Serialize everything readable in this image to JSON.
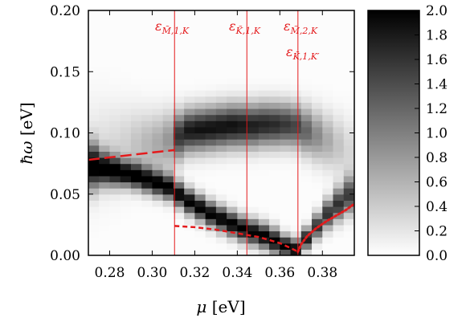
{
  "chart_data": [
    {
      "type": "heatmap",
      "xlabel_symbol": "μ",
      "xlabel_unit": "[eV]",
      "ylabel_symbol": "ħω",
      "ylabel_unit": "[eV]",
      "xlim": [
        0.27,
        0.395
      ],
      "ylim": [
        0.0,
        0.2
      ],
      "x_ticks": [
        0.28,
        0.3,
        0.32,
        0.34,
        0.36,
        0.38
      ],
      "x_tick_labels": [
        "0.28",
        "0.30",
        "0.32",
        "0.34",
        "0.36",
        "0.38"
      ],
      "y_ticks": [
        0.0,
        0.05,
        0.1,
        0.15,
        0.2
      ],
      "y_tick_labels": [
        "0.00",
        "0.05",
        "0.10",
        "0.15",
        "0.20"
      ],
      "grid": false,
      "colormap": "gray_r",
      "colorbar": {
        "range": [
          0.0,
          2.0
        ],
        "ticks": [
          0.0,
          0.2,
          0.4,
          0.6,
          0.8,
          1.0,
          1.2,
          1.4,
          1.6,
          1.8,
          2.0
        ],
        "tick_labels": [
          "0.0",
          "0.2",
          "0.4",
          "0.6",
          "0.8",
          "1.0",
          "1.2",
          "1.4",
          "1.6",
          "1.8",
          "2.0"
        ],
        "placement": "right"
      },
      "columns_mu": [
        0.2725,
        0.2775,
        0.2825,
        0.2875,
        0.2925,
        0.2975,
        0.3025,
        0.3075,
        0.3125,
        0.3175,
        0.3225,
        0.3275,
        0.3325,
        0.3375,
        0.3425,
        0.3475,
        0.3525,
        0.3575,
        0.3625,
        0.3675,
        0.3725,
        0.3775,
        0.3825,
        0.3875,
        0.3925
      ],
      "features": [
        {
          "name": "lower-band",
          "mu": [
            0.2725,
            0.2775,
            0.2825,
            0.2875,
            0.2925,
            0.2975,
            0.3025,
            0.3075,
            0.3125,
            0.3175,
            0.3225,
            0.3275,
            0.3325,
            0.3375,
            0.3425,
            0.3475,
            0.3525,
            0.3575,
            0.3625,
            0.3675,
            0.3725,
            0.3775,
            0.3825,
            0.3875,
            0.3925
          ],
          "omega": [
            0.073,
            0.071,
            0.069,
            0.067,
            0.065,
            0.062,
            0.059,
            0.056,
            0.05,
            0.044,
            0.039,
            0.034,
            0.03,
            0.026,
            0.022,
            0.019,
            0.016,
            0.012,
            0.008,
            0.005,
            0.014,
            0.024,
            0.034,
            0.042,
            0.049
          ],
          "width": [
            0.012,
            0.009,
            0.008,
            0.007,
            0.007,
            0.007,
            0.007,
            0.007,
            0.007,
            0.007,
            0.007,
            0.007,
            0.007,
            0.007,
            0.007,
            0.007,
            0.007,
            0.007,
            0.006,
            0.006,
            0.006,
            0.007,
            0.008,
            0.009,
            0.01
          ],
          "amplitude": [
            2.0,
            2.0,
            2.0,
            2.0,
            2.0,
            2.0,
            2.0,
            2.0,
            2.0,
            2.0,
            2.0,
            2.0,
            2.0,
            2.0,
            2.0,
            2.0,
            2.0,
            2.0,
            2.0,
            2.0,
            1.8,
            1.6,
            1.6,
            1.6,
            1.5
          ]
        },
        {
          "name": "upper-band",
          "mu": [
            0.2725,
            0.2775,
            0.2825,
            0.2875,
            0.2925,
            0.2975,
            0.3025,
            0.3075,
            0.3125,
            0.3175,
            0.3225,
            0.3275,
            0.3325,
            0.3375,
            0.3425,
            0.3475,
            0.3525,
            0.3575,
            0.3625,
            0.3675,
            0.3725,
            0.3775,
            0.3825,
            0.3875,
            0.3925
          ],
          "omega": [
            0.085,
            0.087,
            0.088,
            0.089,
            0.09,
            0.091,
            0.092,
            0.094,
            0.098,
            0.102,
            0.103,
            0.104,
            0.105,
            0.106,
            0.106,
            0.106,
            0.107,
            0.107,
            0.107,
            0.106,
            0.102,
            0.098,
            0.094,
            0.09,
            0.086
          ],
          "width": [
            0.028,
            0.026,
            0.024,
            0.022,
            0.02,
            0.018,
            0.017,
            0.016,
            0.013,
            0.012,
            0.012,
            0.012,
            0.012,
            0.012,
            0.012,
            0.012,
            0.012,
            0.012,
            0.012,
            0.012,
            0.013,
            0.014,
            0.015,
            0.016,
            0.018
          ],
          "amplitude": [
            0.2,
            0.25,
            0.3,
            0.35,
            0.45,
            0.55,
            0.65,
            0.8,
            1.6,
            1.8,
            1.85,
            1.85,
            1.85,
            1.85,
            1.8,
            1.75,
            1.7,
            1.65,
            1.55,
            1.45,
            1.2,
            0.9,
            0.65,
            0.45,
            0.3
          ]
        }
      ],
      "vertical_lines": [
        {
          "label": "ε_{M̃,1,K}",
          "label_base": "ε",
          "label_sub": "M̃,1,K",
          "x": 0.3105,
          "color": "#e41a1c"
        },
        {
          "label": "ε_{K̃,1,K}",
          "label_base": "ε",
          "label_sub": "K̃,1,K",
          "x": 0.3445,
          "color": "#e41a1c"
        },
        {
          "label": "ε_{M̃,2,K}",
          "label_base": "ε",
          "label_sub": "M̃,2,K",
          "x": 0.3685,
          "color": "#e41a1c"
        }
      ],
      "extra_label": {
        "label": "ε_{K̃,1,K′}",
        "label_base": "ε",
        "label_sub": "K̃,1,K′",
        "color": "#e41a1c"
      },
      "curves": [
        {
          "name": "long-dashed",
          "style": "long-dash",
          "color": "#e41a1c",
          "x": [
            0.27,
            0.28,
            0.29,
            0.3,
            0.3105
          ],
          "y": [
            0.078,
            0.08,
            0.082,
            0.084,
            0.086
          ]
        },
        {
          "name": "dashed",
          "style": "dash",
          "color": "#e41a1c",
          "x": [
            0.3105,
            0.32,
            0.33,
            0.34,
            0.35,
            0.36,
            0.365,
            0.3685
          ],
          "y": [
            0.024,
            0.023,
            0.021,
            0.018,
            0.015,
            0.01,
            0.006,
            0.003
          ]
        },
        {
          "name": "dotted",
          "style": "dot",
          "color": "#e41a1c",
          "x": [
            0.3685,
            0.37,
            0.373,
            0.377,
            0.382,
            0.387,
            0.391,
            0.395
          ],
          "y": [
            0.003,
            0.009,
            0.016,
            0.022,
            0.028,
            0.033,
            0.037,
            0.042
          ]
        }
      ]
    }
  ]
}
